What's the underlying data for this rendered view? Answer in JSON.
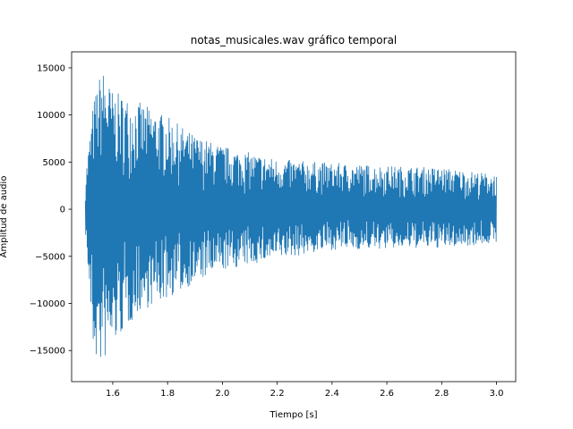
{
  "chart_data": {
    "type": "line",
    "title": "notas_musicales.wav gráfico temporal",
    "xlabel": "Tiempo [s]",
    "ylabel": "Amplitud de audio",
    "xlim": [
      1.45,
      3.07
    ],
    "ylim": [
      -18300,
      16700
    ],
    "x_ticks": [
      1.6,
      1.8,
      2.0,
      2.2,
      2.4,
      2.6,
      2.8,
      3.0
    ],
    "x_tick_labels": [
      "1.6",
      "1.8",
      "2.0",
      "2.2",
      "2.4",
      "2.6",
      "2.8",
      "3.0"
    ],
    "y_ticks": [
      15000,
      10000,
      5000,
      0,
      -5000,
      -10000,
      -15000
    ],
    "y_tick_labels": [
      "15000",
      "10000",
      "5000",
      "0",
      "−5000",
      "−10000",
      "−15000"
    ],
    "grid": false,
    "color": "#1f77b4",
    "series": [
      {
        "x_start": 1.5,
        "x_end": 3.0,
        "envelope": {
          "t": [
            1.5,
            1.53,
            1.56,
            1.6,
            1.7,
            1.8,
            1.9,
            2.0,
            2.2,
            2.4,
            2.6,
            2.8,
            3.0
          ],
          "max": [
            3500,
            11500,
            15100,
            12500,
            11300,
            9800,
            7800,
            6700,
            5300,
            4900,
            4600,
            4400,
            3700
          ],
          "min": [
            -2200,
            -15700,
            -16700,
            -14500,
            -10800,
            -9500,
            -7800,
            -6500,
            -5300,
            -4300,
            -4200,
            -4100,
            -3600
          ]
        }
      }
    ]
  }
}
